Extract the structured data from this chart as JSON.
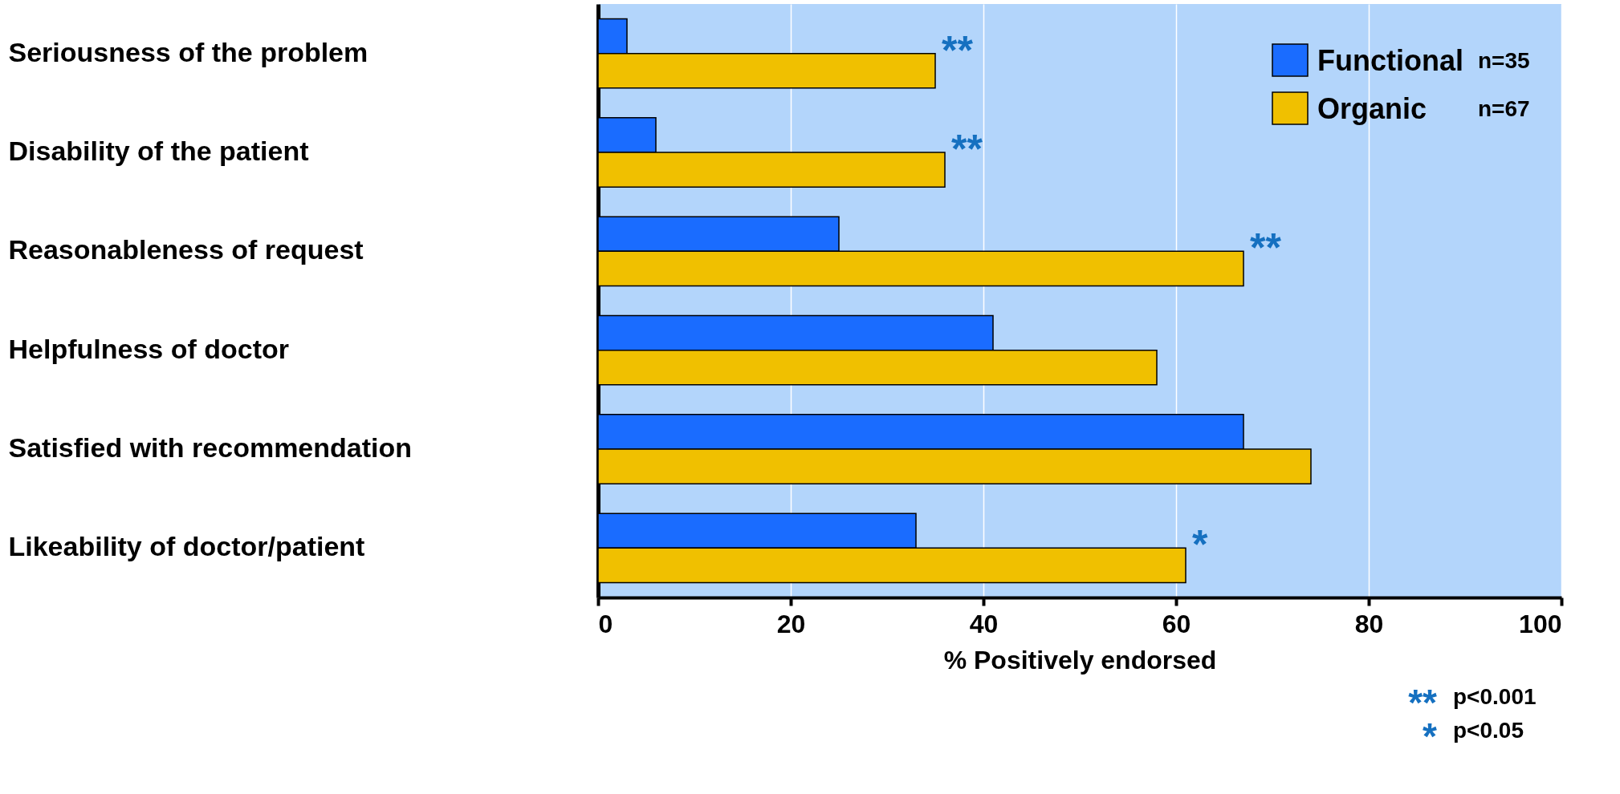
{
  "chart_data": {
    "type": "bar",
    "orientation": "horizontal",
    "xlabel": "% Positively endorsed",
    "categories": [
      "Seriousness of the problem",
      "Disability of the patient",
      "Reasonableness of request",
      "Helpfulness of doctor",
      "Satisfied with recommendation",
      "Likeability of doctor/patient"
    ],
    "series": [
      {
        "name": "Functional",
        "color": "#1a6cff",
        "values": [
          3,
          6,
          25,
          41,
          67,
          33
        ]
      },
      {
        "name": "Organic",
        "color": "#f0c000",
        "values": [
          35,
          36,
          67,
          58,
          74,
          61
        ]
      }
    ],
    "xlim": [
      0,
      100
    ],
    "xticks": [
      0,
      20,
      40,
      60,
      80,
      100
    ],
    "grid": "x",
    "legend": "top right",
    "annotations": [
      "n=35",
      "n=67",
      "** p<0.001",
      "* p<0.05",
      {
        "text": "**",
        "x": 35,
        "y": "Seriousness of the problem"
      },
      {
        "text": "**",
        "x": 36,
        "y": "Disability of the patient"
      },
      {
        "text": "**",
        "x": 67,
        "y": "Reasonableness of request"
      },
      {
        "text": "*",
        "x": 61,
        "y": "Likeability of doctor/patient"
      }
    ]
  }
}
